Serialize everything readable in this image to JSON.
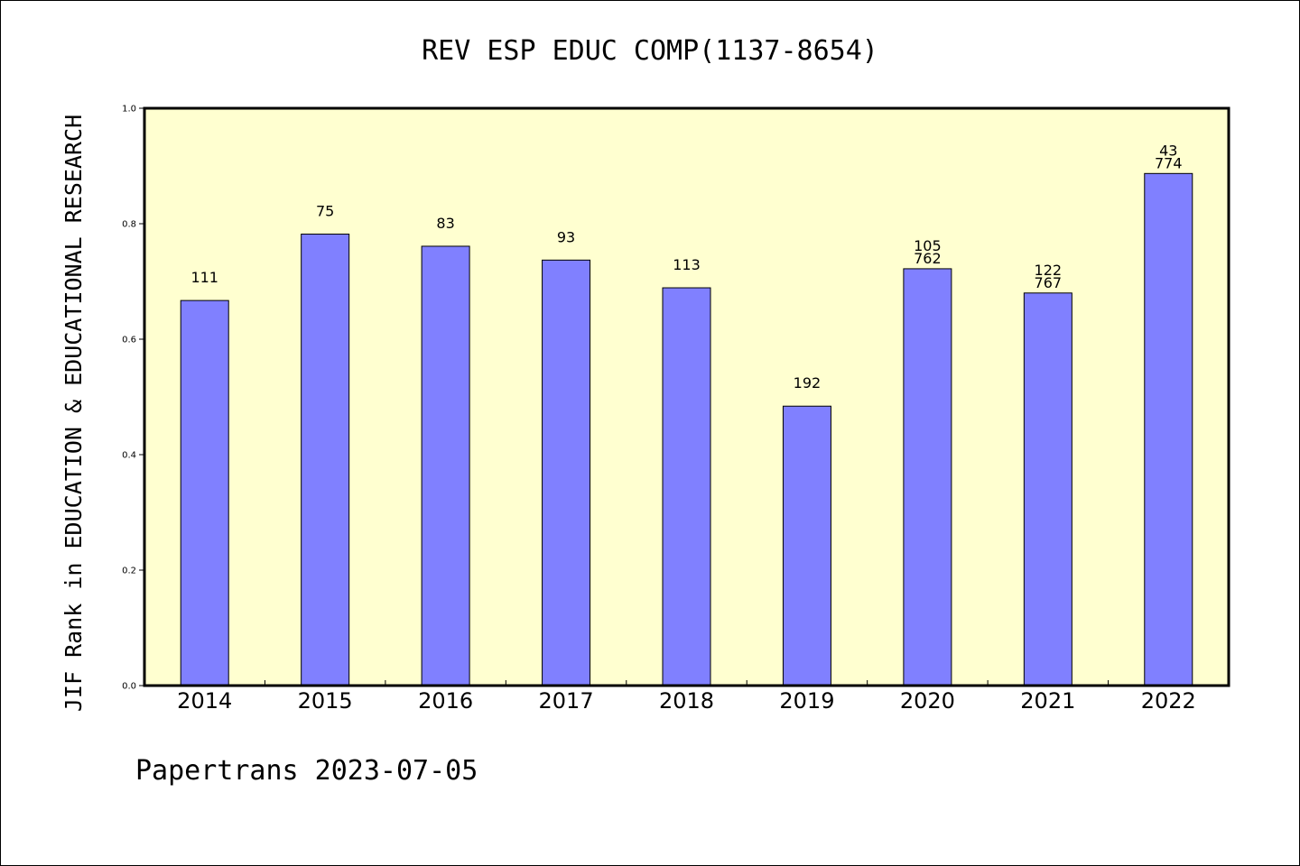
{
  "chart_data": {
    "type": "bar",
    "title": "REV ESP EDUC COMP(1137-8654)",
    "ylabel": "JIF Rank in EDUCATION & EDUCATIONAL RESEARCH",
    "xlabel": "",
    "ylim": [
      0,
      1.0
    ],
    "yticks": [
      "0.0",
      "0.2",
      "0.4",
      "0.6",
      "0.8",
      "1.0"
    ],
    "categories": [
      "2014",
      "2015",
      "2016",
      "2017",
      "2018",
      "2019",
      "2020",
      "2021",
      "2022"
    ],
    "values": [
      0.667,
      0.782,
      0.761,
      0.737,
      0.689,
      0.484,
      0.722,
      0.68,
      0.887
    ],
    "labels": [
      [
        "111"
      ],
      [
        "75"
      ],
      [
        "83"
      ],
      [
        "93"
      ],
      [
        "113"
      ],
      [
        "192"
      ],
      [
        "105",
        "762"
      ],
      [
        "122",
        "767"
      ],
      [
        "43",
        "774"
      ]
    ],
    "grid": false,
    "legend": "none",
    "colors": {
      "bar": "#8080ff",
      "plot_bg": "#ffffd0",
      "axis": "#000000"
    }
  },
  "footer": "Papertrans 2023-07-05"
}
